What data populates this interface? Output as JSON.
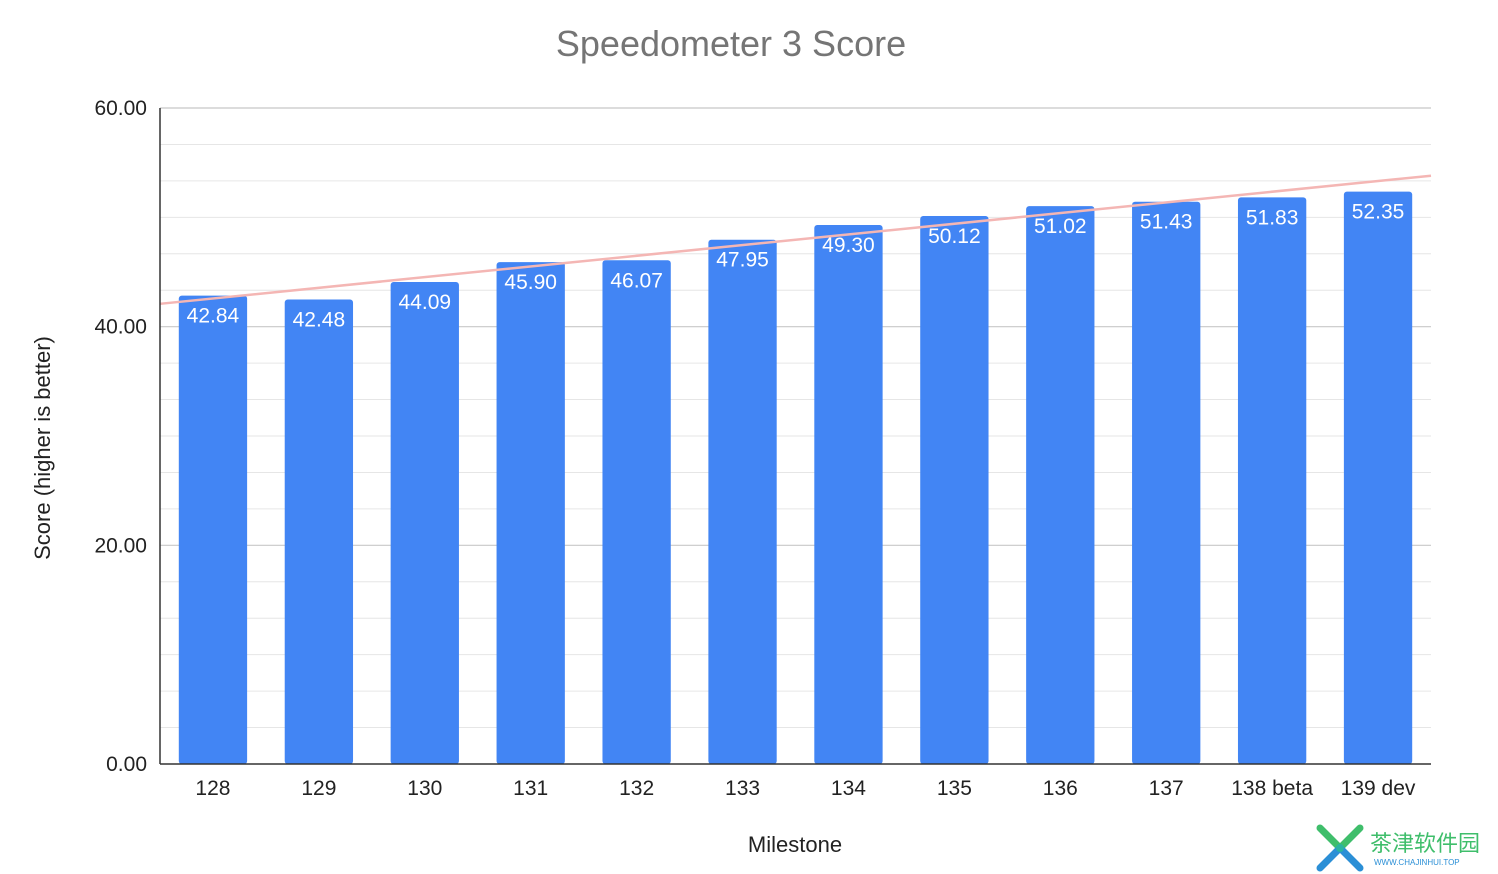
{
  "chart_data": {
    "type": "bar",
    "title": "Speedometer 3 Score",
    "xlabel": "Milestone",
    "ylabel": "Score (higher is better)",
    "categories": [
      "128",
      "129",
      "130",
      "131",
      "132",
      "133",
      "134",
      "135",
      "136",
      "137",
      "138 beta",
      "139 dev"
    ],
    "values": [
      42.84,
      42.48,
      44.09,
      45.9,
      46.07,
      47.95,
      49.3,
      50.12,
      51.02,
      51.43,
      51.83,
      52.35
    ],
    "data_labels": [
      "42.84",
      "42.48",
      "44.09",
      "45.90",
      "46.07",
      "47.95",
      "49.30",
      "50.12",
      "51.02",
      "51.43",
      "51.83",
      "52.35"
    ],
    "ylim": [
      0,
      60
    ],
    "yticks": [
      0,
      20,
      40,
      60
    ],
    "ytick_labels": [
      "0.00",
      "20.00",
      "40.00",
      "60.00"
    ],
    "minor_gridlines_per_major": 6,
    "grid": true,
    "trendline": {
      "type": "linear",
      "color": "#f4b6b4"
    },
    "colors": {
      "bar": "#4285f4",
      "title": "#757575"
    }
  },
  "watermark": {
    "text": "茶津软件园",
    "subtext": "WWW.CHAJINHUI.TOP",
    "colors": {
      "green": "#3fbe6b",
      "blue": "#2b8fd6"
    }
  }
}
